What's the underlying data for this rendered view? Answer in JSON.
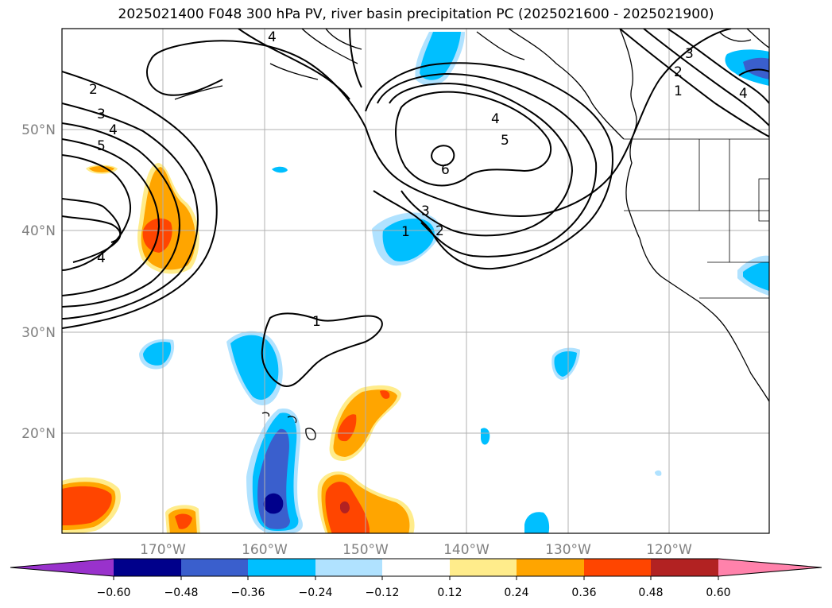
{
  "title": "2025021400 F048 300 hPa PV, river basin precipitation PC (2025021600 - 2025021900)",
  "lat_labels": [
    "50°N",
    "40°N",
    "30°N",
    "20°N"
  ],
  "lon_labels": [
    "170°W",
    "160°W",
    "150°W",
    "140°W",
    "130°W",
    "120°W"
  ],
  "colorbar": {
    "tick_labels": [
      "−0.60",
      "−0.48",
      "−0.36",
      "−0.24",
      "−0.12",
      "0.12",
      "0.24",
      "0.36",
      "0.48",
      "0.60"
    ],
    "colors": [
      "#9932cc",
      "#00008b",
      "#3a5fcd",
      "#00bfff",
      "#b0e2ff",
      "#ffffff",
      "#ffec8b",
      "#ffa500",
      "#ff4500",
      "#b22222",
      "#ff82ab"
    ]
  },
  "contour_labels": [
    "2",
    "3",
    "4",
    "5",
    "4",
    "6",
    "5",
    "4",
    "3",
    "2",
    "1",
    "1",
    "3",
    "2",
    "1",
    "4",
    "4"
  ]
}
